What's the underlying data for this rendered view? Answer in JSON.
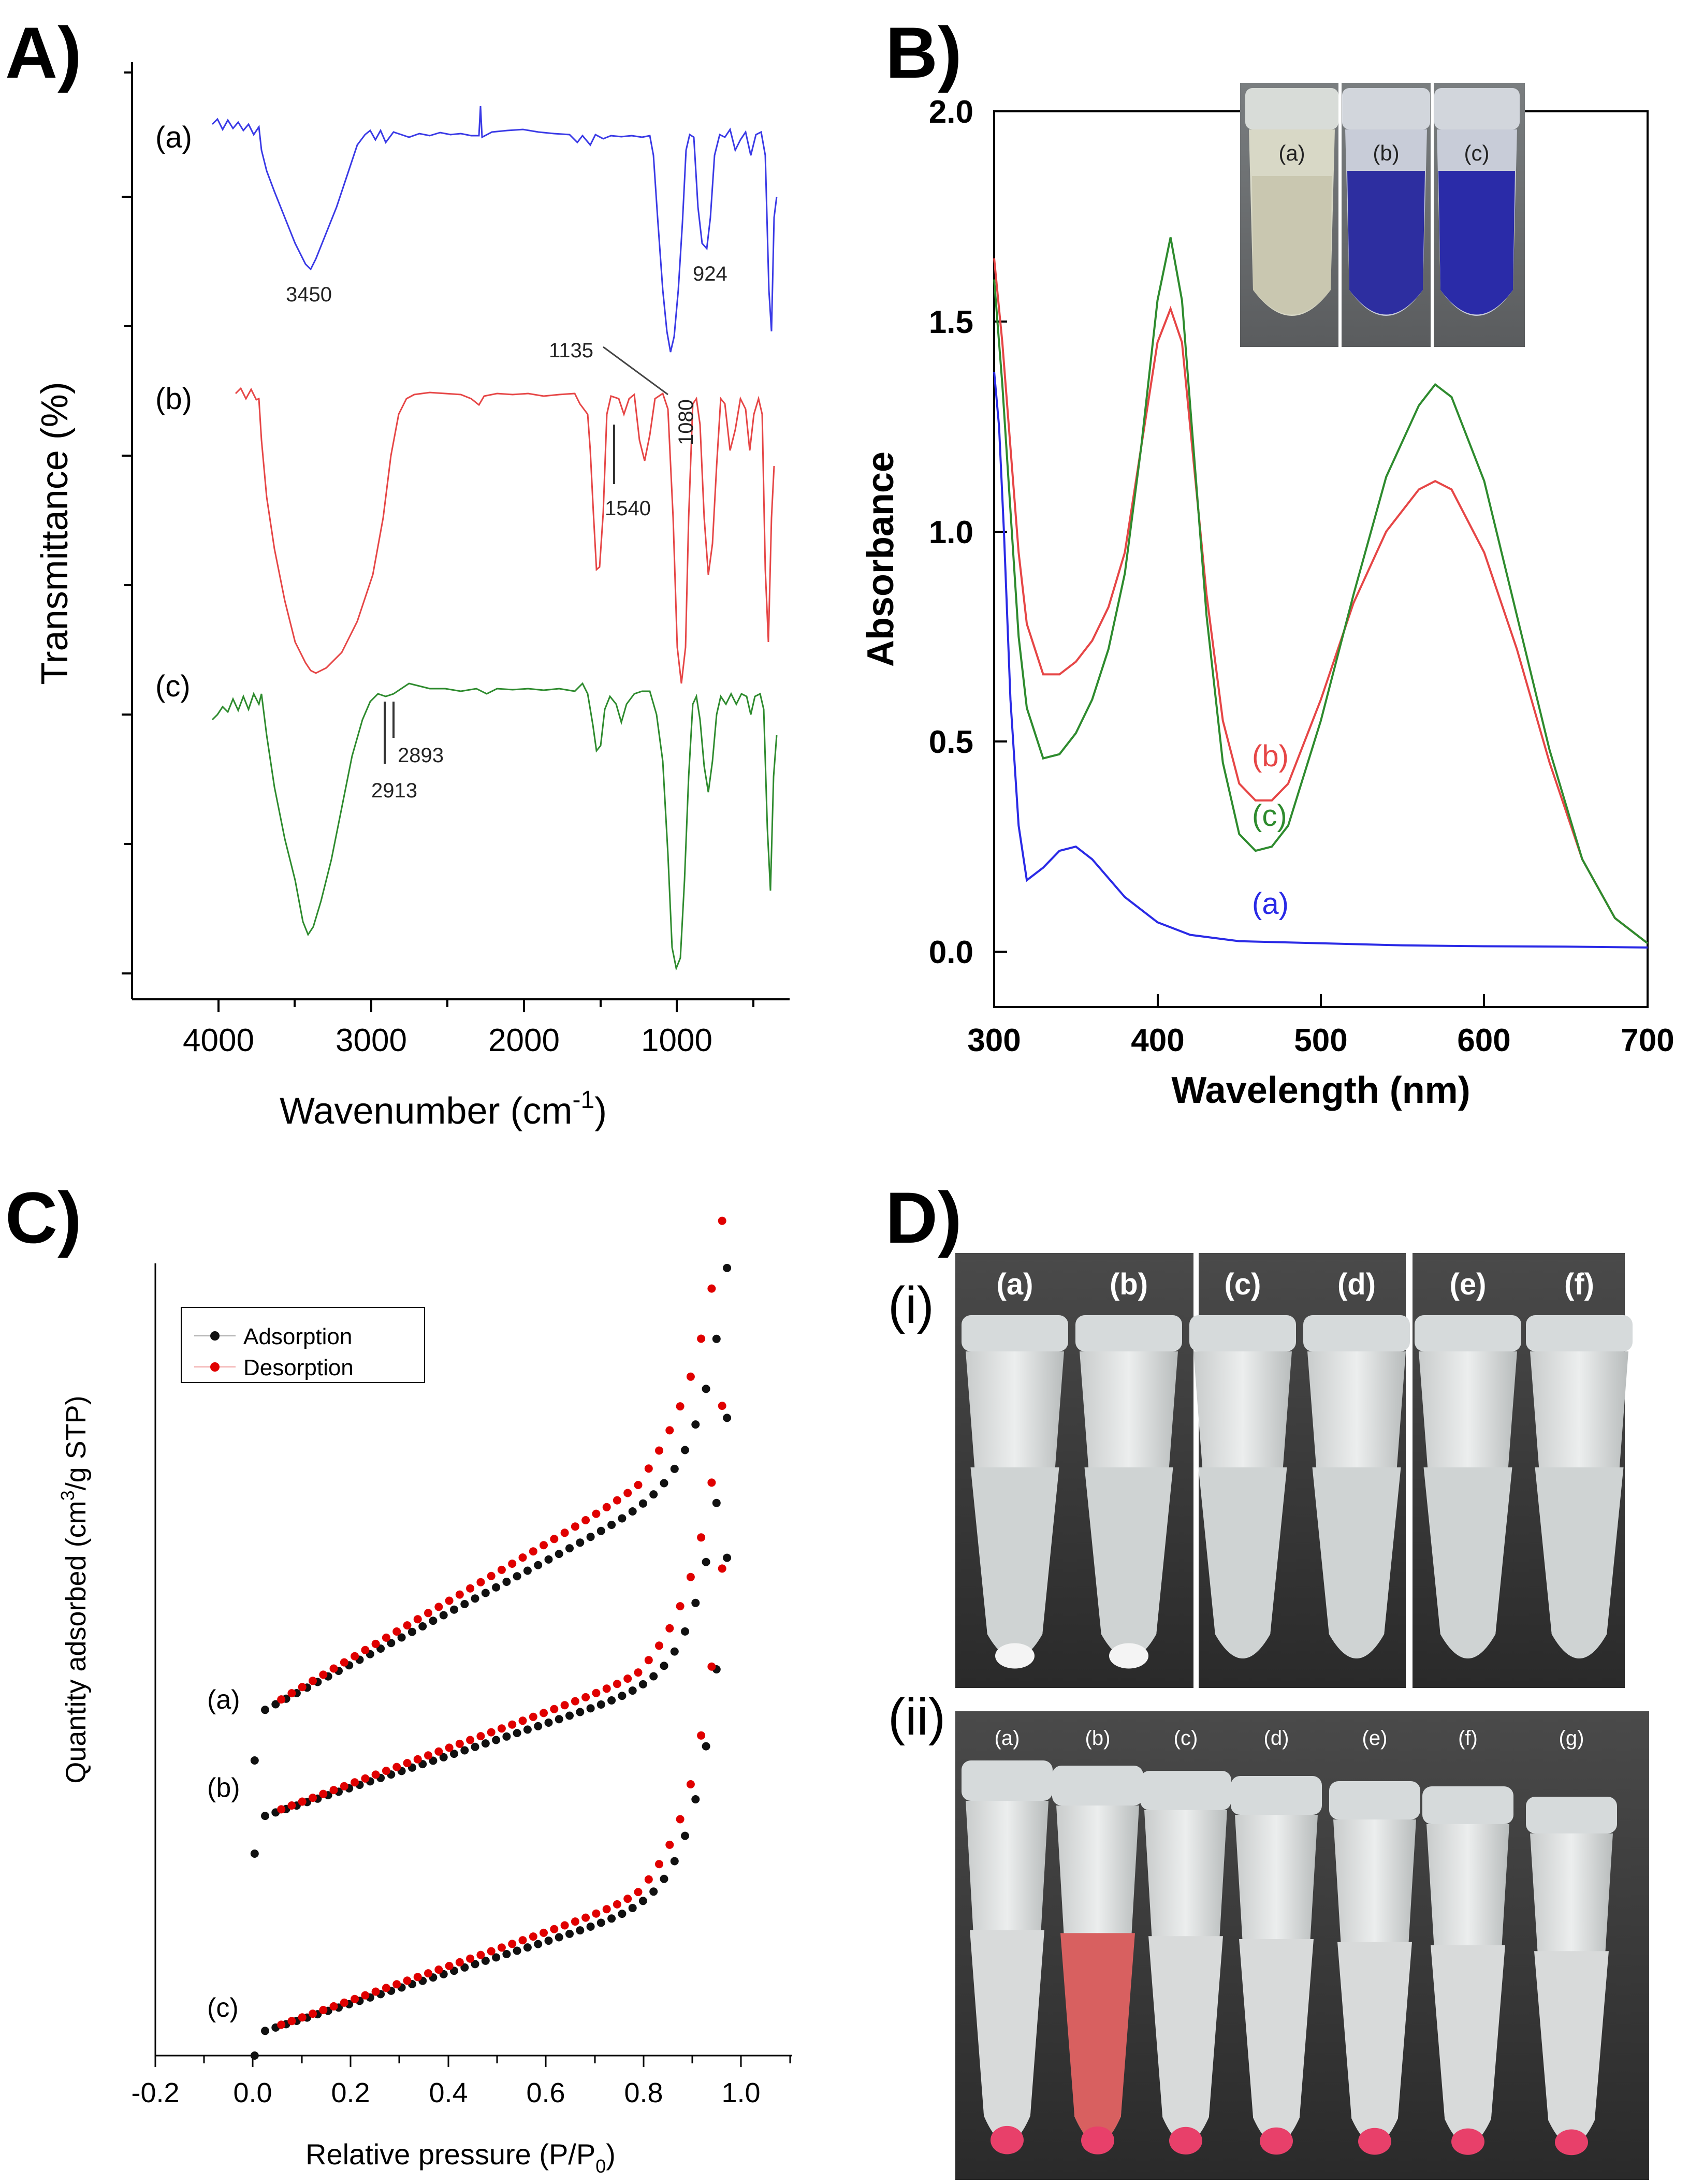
{
  "panels": {
    "a": "A)",
    "b": "B)",
    "c": "C)",
    "d": "D)"
  },
  "chart_data": [
    {
      "id": "A",
      "type": "line",
      "title": "",
      "xlabel": "Wavenumber (cm",
      "xlabel_sup": "-1",
      "xlabel_end": ")",
      "ylabel": "Transmittance (%)",
      "xlim": [
        4500,
        400
      ],
      "xticks": [
        4000,
        3000,
        2000,
        1000
      ],
      "xtick_labels": [
        "4000",
        "3000",
        "2000",
        "1000"
      ],
      "series": [
        {
          "name": "(a)",
          "color": "#3a3ae6"
        },
        {
          "name": "(b)",
          "color": "#e64646"
        },
        {
          "name": "(c)",
          "color": "#2e8b2e"
        }
      ],
      "annotations": [
        "3450",
        "924",
        "1135",
        "1080",
        "1540",
        "2893",
        "2913"
      ]
    },
    {
      "id": "B",
      "type": "line",
      "xlabel": "Wavelength (nm)",
      "ylabel": "Absorbance",
      "xlim": [
        300,
        700
      ],
      "ylim": [
        -0.1,
        2.0
      ],
      "xtick_labels": [
        "300",
        "400",
        "500",
        "600",
        "700"
      ],
      "ytick_labels": [
        "0.0",
        "0.5",
        "1.0",
        "1.5",
        "2.0"
      ],
      "series": [
        {
          "name": "(a)",
          "color": "#2a2ae6",
          "x": [
            300,
            303,
            306,
            310,
            315,
            320,
            330,
            340,
            350,
            360,
            380,
            400,
            420,
            450,
            500,
            550,
            600,
            650,
            700
          ],
          "y": [
            1.38,
            1.25,
            1.0,
            0.6,
            0.3,
            0.17,
            0.2,
            0.24,
            0.25,
            0.22,
            0.13,
            0.07,
            0.04,
            0.025,
            0.02,
            0.015,
            0.013,
            0.012,
            0.01
          ]
        },
        {
          "name": "(b)",
          "color": "#e64646",
          "x": [
            300,
            305,
            310,
            315,
            320,
            330,
            340,
            350,
            360,
            370,
            380,
            390,
            400,
            408,
            415,
            420,
            430,
            440,
            450,
            460,
            470,
            480,
            500,
            520,
            540,
            560,
            570,
            580,
            600,
            620,
            640,
            660,
            680,
            700
          ],
          "y": [
            1.65,
            1.45,
            1.2,
            0.95,
            0.78,
            0.66,
            0.66,
            0.69,
            0.74,
            0.82,
            0.95,
            1.2,
            1.45,
            1.53,
            1.45,
            1.25,
            0.85,
            0.55,
            0.4,
            0.36,
            0.36,
            0.4,
            0.6,
            0.83,
            1.0,
            1.1,
            1.12,
            1.1,
            0.95,
            0.72,
            0.45,
            0.22,
            0.08,
            0.02
          ]
        },
        {
          "name": "(c)",
          "color": "#2e8b2e",
          "x": [
            300,
            305,
            310,
            315,
            320,
            330,
            340,
            350,
            360,
            370,
            380,
            390,
            400,
            408,
            415,
            420,
            430,
            440,
            450,
            460,
            470,
            480,
            500,
            520,
            540,
            560,
            570,
            580,
            600,
            620,
            640,
            660,
            680,
            700
          ],
          "y": [
            1.6,
            1.35,
            1.05,
            0.75,
            0.58,
            0.46,
            0.47,
            0.52,
            0.6,
            0.72,
            0.9,
            1.2,
            1.55,
            1.7,
            1.55,
            1.3,
            0.8,
            0.45,
            0.28,
            0.24,
            0.25,
            0.3,
            0.55,
            0.85,
            1.13,
            1.3,
            1.35,
            1.32,
            1.12,
            0.8,
            0.48,
            0.22,
            0.08,
            0.02
          ]
        }
      ],
      "curve_labels": [
        "(b)",
        "(c)",
        "(a)"
      ],
      "inset_labels": [
        "(a)",
        "(b)",
        "(c)"
      ]
    },
    {
      "id": "C",
      "type": "scatter",
      "xlabel": "Relative pressure (P/P",
      "xlabel_sub": "0",
      "xlabel_end": ")",
      "ylabel": "Quantity adsorbed (cm",
      "ylabel_sup": "3",
      "ylabel_end": "/g STP)",
      "xlim": [
        -0.2,
        1.1
      ],
      "xtick_labels": [
        "-0.2",
        "0.0",
        "0.2",
        "0.4",
        "0.6",
        "0.8",
        "1.0"
      ],
      "legend": [
        "Adsorption",
        "Desorption"
      ],
      "legend_colors": [
        "#111111",
        "#e00000"
      ],
      "legend_position": "top-left",
      "series_labels": [
        "(a)",
        "(b)",
        "(c)"
      ]
    }
  ],
  "photos": {
    "D_i_labels": [
      "(a)",
      "(b)",
      "(c)",
      "(d)",
      "(e)",
      "(f)"
    ],
    "D_ii_labels": [
      "(a)",
      "(b)",
      "(c)",
      "(d)",
      "(e)",
      "(f)",
      "(g)"
    ],
    "roman_i": "(i)",
    "roman_ii": "(ii)"
  }
}
